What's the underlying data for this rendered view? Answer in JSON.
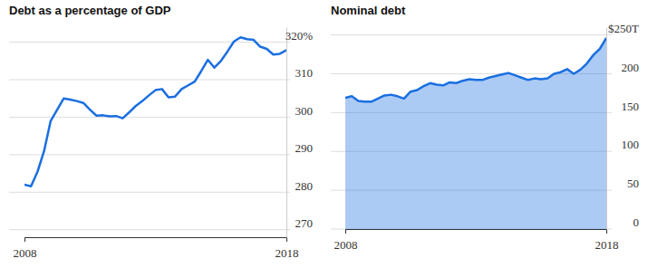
{
  "chart_data": [
    {
      "type": "line",
      "title": "Debt as a percentage of GDP",
      "x": [
        2008,
        2008.25,
        2008.5,
        2008.75,
        2009,
        2009.25,
        2009.5,
        2009.75,
        2010,
        2010.25,
        2010.5,
        2010.75,
        2011,
        2011.25,
        2011.5,
        2011.75,
        2012,
        2012.25,
        2012.5,
        2012.75,
        2013,
        2013.25,
        2013.5,
        2013.75,
        2014,
        2014.25,
        2014.5,
        2014.75,
        2015,
        2015.25,
        2015.5,
        2015.75,
        2016,
        2016.25,
        2016.5,
        2016.75,
        2017,
        2017.25,
        2017.5,
        2017.75,
        2018
      ],
      "series": [
        {
          "color": "#1a6fe0",
          "values": [
            282,
            281.6,
            285.5,
            291,
            299,
            302,
            305,
            304.7,
            304.3,
            303.8,
            302,
            300.4,
            300.5,
            300.2,
            300.3,
            299.7,
            301.3,
            303,
            304.3,
            305.8,
            307.2,
            307.5,
            305.3,
            305.5,
            307.5,
            308.5,
            309.5,
            312.3,
            315.3,
            313.2,
            315,
            317.5,
            320.2,
            321.3,
            320.8,
            320.6,
            318.8,
            318.2,
            316.7,
            316.9,
            317.9
          ]
        }
      ],
      "xlim": [
        2008,
        2018
      ],
      "xticks": [
        2008,
        2018
      ],
      "ylim": [
        268,
        324
      ],
      "yticks": [
        270,
        280,
        290,
        300,
        310,
        {
          "value": 320,
          "label": "320%"
        }
      ],
      "grid": true
    },
    {
      "type": "area",
      "title": "Nominal debt",
      "x": [
        2008,
        2008.25,
        2008.5,
        2008.75,
        2009,
        2009.25,
        2009.5,
        2009.75,
        2010,
        2010.25,
        2010.5,
        2010.75,
        2011,
        2011.25,
        2011.5,
        2011.75,
        2012,
        2012.25,
        2012.5,
        2012.75,
        2013,
        2013.25,
        2013.5,
        2013.75,
        2014,
        2014.25,
        2014.5,
        2014.75,
        2015,
        2015.25,
        2015.5,
        2015.75,
        2016,
        2016.25,
        2016.5,
        2016.75,
        2017,
        2017.25,
        2017.5,
        2017.75,
        2018
      ],
      "series": [
        {
          "color": "#1a6fe0",
          "values": [
            169,
            171,
            165,
            164,
            164,
            168,
            172,
            173,
            171,
            168,
            177,
            179,
            184,
            188,
            186,
            185,
            189,
            188,
            191,
            193,
            192,
            192,
            195,
            197,
            199,
            201,
            198,
            195,
            192,
            194,
            193,
            194,
            200,
            202,
            206,
            200,
            205,
            213,
            224,
            232,
            246
          ]
        }
      ],
      "xlim": [
        2008,
        2018
      ],
      "xticks": [
        2008,
        2018
      ],
      "ylim": [
        0,
        260
      ],
      "yticks": [
        0,
        50,
        100,
        150,
        200,
        {
          "value": 250,
          "label": "$250T"
        }
      ],
      "grid": true
    }
  ]
}
